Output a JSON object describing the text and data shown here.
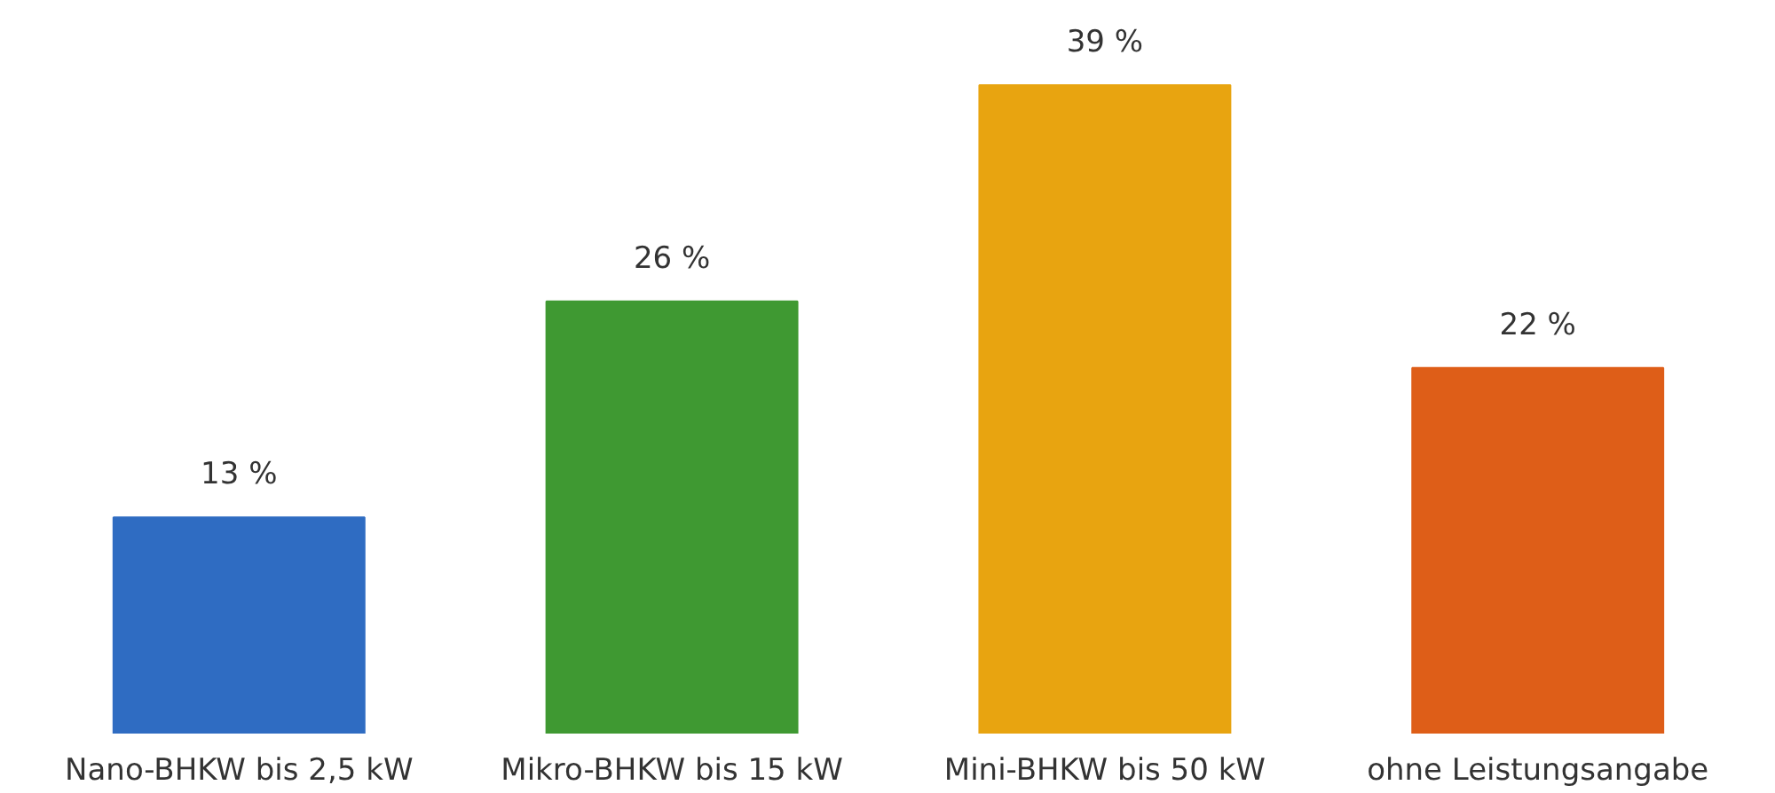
{
  "chart_data": {
    "type": "bar",
    "categories": [
      "Nano-BHKW bis 2,5 kW",
      "Mikro-BHKW bis 15 kW",
      "Mini-BHKW bis 50 kW",
      "ohne Leistungsangabe"
    ],
    "values": [
      13,
      26,
      39,
      22
    ],
    "colors": [
      "#2f6cc2",
      "#3f9932",
      "#e8a410",
      "#de5e18"
    ],
    "value_labels": [
      "13 %",
      "26 %",
      "39 %",
      "22 %"
    ]
  }
}
